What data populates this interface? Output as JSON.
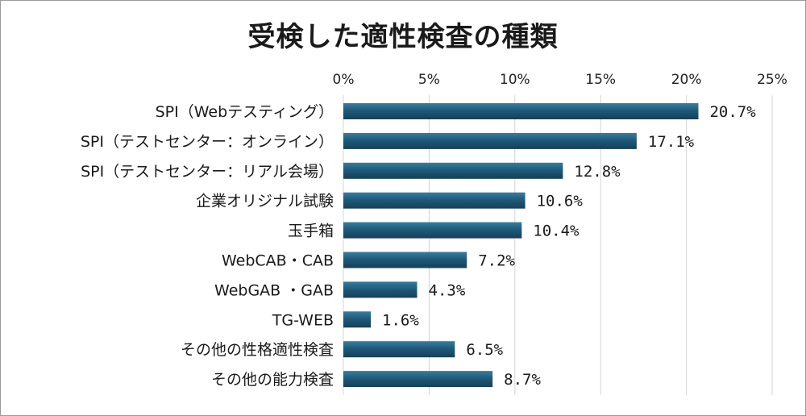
{
  "chart_data": {
    "type": "bar",
    "orientation": "horizontal",
    "title": "受検した適性検査の種類",
    "xlim": [
      0,
      25
    ],
    "x_ticks": [
      "0%",
      "5%",
      "10%",
      "15%",
      "20%",
      "25%"
    ],
    "x_tick_values": [
      0,
      5,
      10,
      15,
      20,
      25
    ],
    "x_axis_position": "top",
    "grid": true,
    "categories": [
      "SPI（Webテスティング）",
      "SPI（テストセンター：オンライン）",
      "SPI（テストセンター：リアル会場）",
      "企業オリジナル試験",
      "玉手箱",
      "WebCAB・CAB",
      "WebGAB ・GAB",
      "TG-WEB",
      "その他の性格適性検査",
      "その他の能力検査"
    ],
    "values": [
      20.7,
      17.1,
      12.8,
      10.6,
      10.4,
      7.2,
      4.3,
      1.6,
      6.5,
      8.7
    ],
    "data_labels": [
      "20.7%",
      "17.1%",
      "12.8%",
      "10.6%",
      "10.4%",
      "7.2%",
      "4.3%",
      "1.6%",
      "6.5%",
      "8.7%"
    ],
    "bar_color": "#1f5a7a"
  }
}
